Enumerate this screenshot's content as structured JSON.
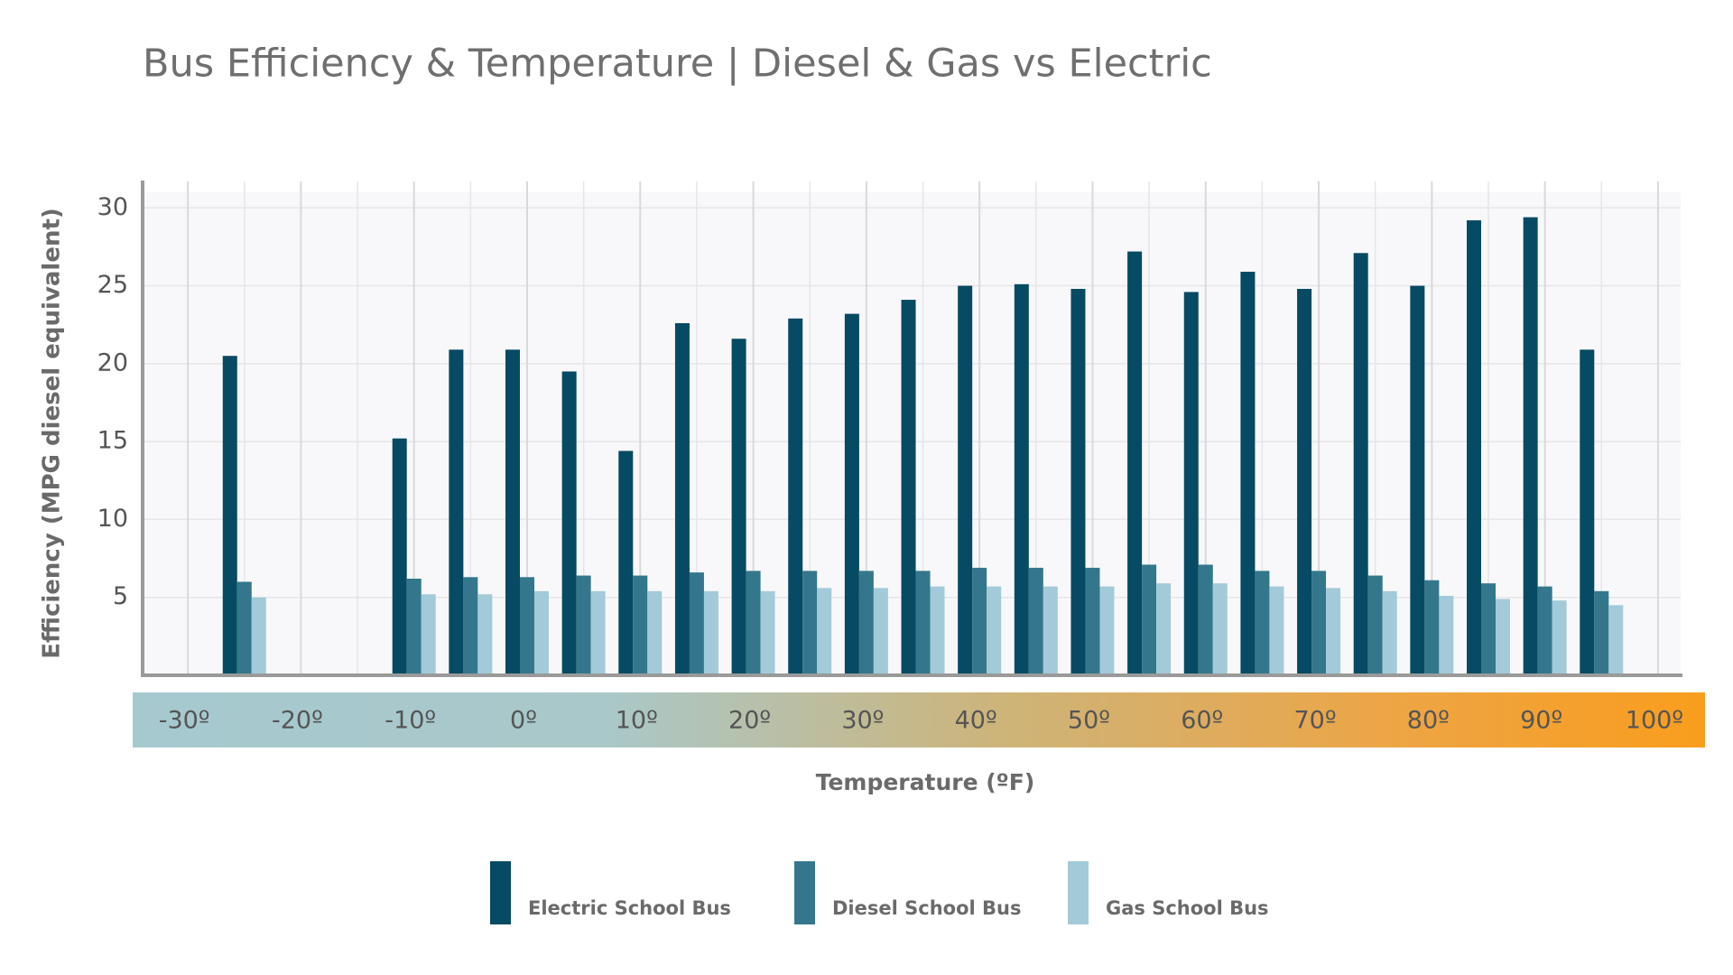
{
  "chart_data": {
    "type": "bar",
    "title": "Bus Efficiency & Temperature | Diesel & Gas vs Electric",
    "x_label": "Temperature (ºF)",
    "y_label": "Efficiency (MPG diesel equivalent)",
    "x": [
      -25,
      -10,
      -5,
      0,
      5,
      10,
      15,
      20,
      25,
      30,
      35,
      40,
      45,
      50,
      55,
      60,
      65,
      70,
      75,
      80,
      85,
      90,
      95
    ],
    "series": [
      {
        "name": "Electric School Bus",
        "color": "#074a63",
        "values": [
          20.5,
          15.2,
          20.9,
          20.9,
          19.5,
          14.4,
          22.6,
          21.6,
          22.9,
          23.2,
          24.1,
          25.0,
          25.1,
          24.8,
          27.2,
          24.6,
          25.9,
          24.8,
          27.1,
          25.0,
          29.2,
          29.4,
          20.9
        ]
      },
      {
        "name": "Diesel School Bus",
        "color": "#34778c",
        "values": [
          6.0,
          6.2,
          6.3,
          6.3,
          6.4,
          6.4,
          6.6,
          6.7,
          6.7,
          6.7,
          6.7,
          6.9,
          6.9,
          6.9,
          7.1,
          7.1,
          6.7,
          6.7,
          6.4,
          6.1,
          5.9,
          5.7,
          5.4
        ]
      },
      {
        "name": "Gas School Bus",
        "color": "#a3cad8",
        "values": [
          5.0,
          5.2,
          5.2,
          5.4,
          5.4,
          5.4,
          5.4,
          5.4,
          5.6,
          5.6,
          5.7,
          5.7,
          5.7,
          5.7,
          5.9,
          5.9,
          5.7,
          5.6,
          5.4,
          5.1,
          4.9,
          4.8,
          4.5
        ]
      }
    ],
    "xlim": [
      -34,
      102
    ],
    "xticks": [
      {
        "value": -30,
        "label": "-30º"
      },
      {
        "value": -20,
        "label": "-20º"
      },
      {
        "value": -10,
        "label": "-10º"
      },
      {
        "value": 0,
        "label": "0º"
      },
      {
        "value": 10,
        "label": "10º"
      },
      {
        "value": 20,
        "label": "20º"
      },
      {
        "value": 30,
        "label": "30º"
      },
      {
        "value": 40,
        "label": "40º"
      },
      {
        "value": 50,
        "label": "50º"
      },
      {
        "value": 60,
        "label": "60º"
      },
      {
        "value": 70,
        "label": "70º"
      },
      {
        "value": 80,
        "label": "80º"
      },
      {
        "value": 90,
        "label": "90º"
      },
      {
        "value": 100,
        "label": "100º"
      }
    ],
    "xgrid": [
      -25,
      -15,
      -5,
      5,
      15,
      25,
      35,
      45,
      55,
      65,
      75,
      85,
      95
    ],
    "ylim": [
      0,
      31
    ],
    "yticks": [
      5,
      10,
      15,
      20,
      25,
      30
    ],
    "grid": true,
    "legend": "bottom"
  }
}
